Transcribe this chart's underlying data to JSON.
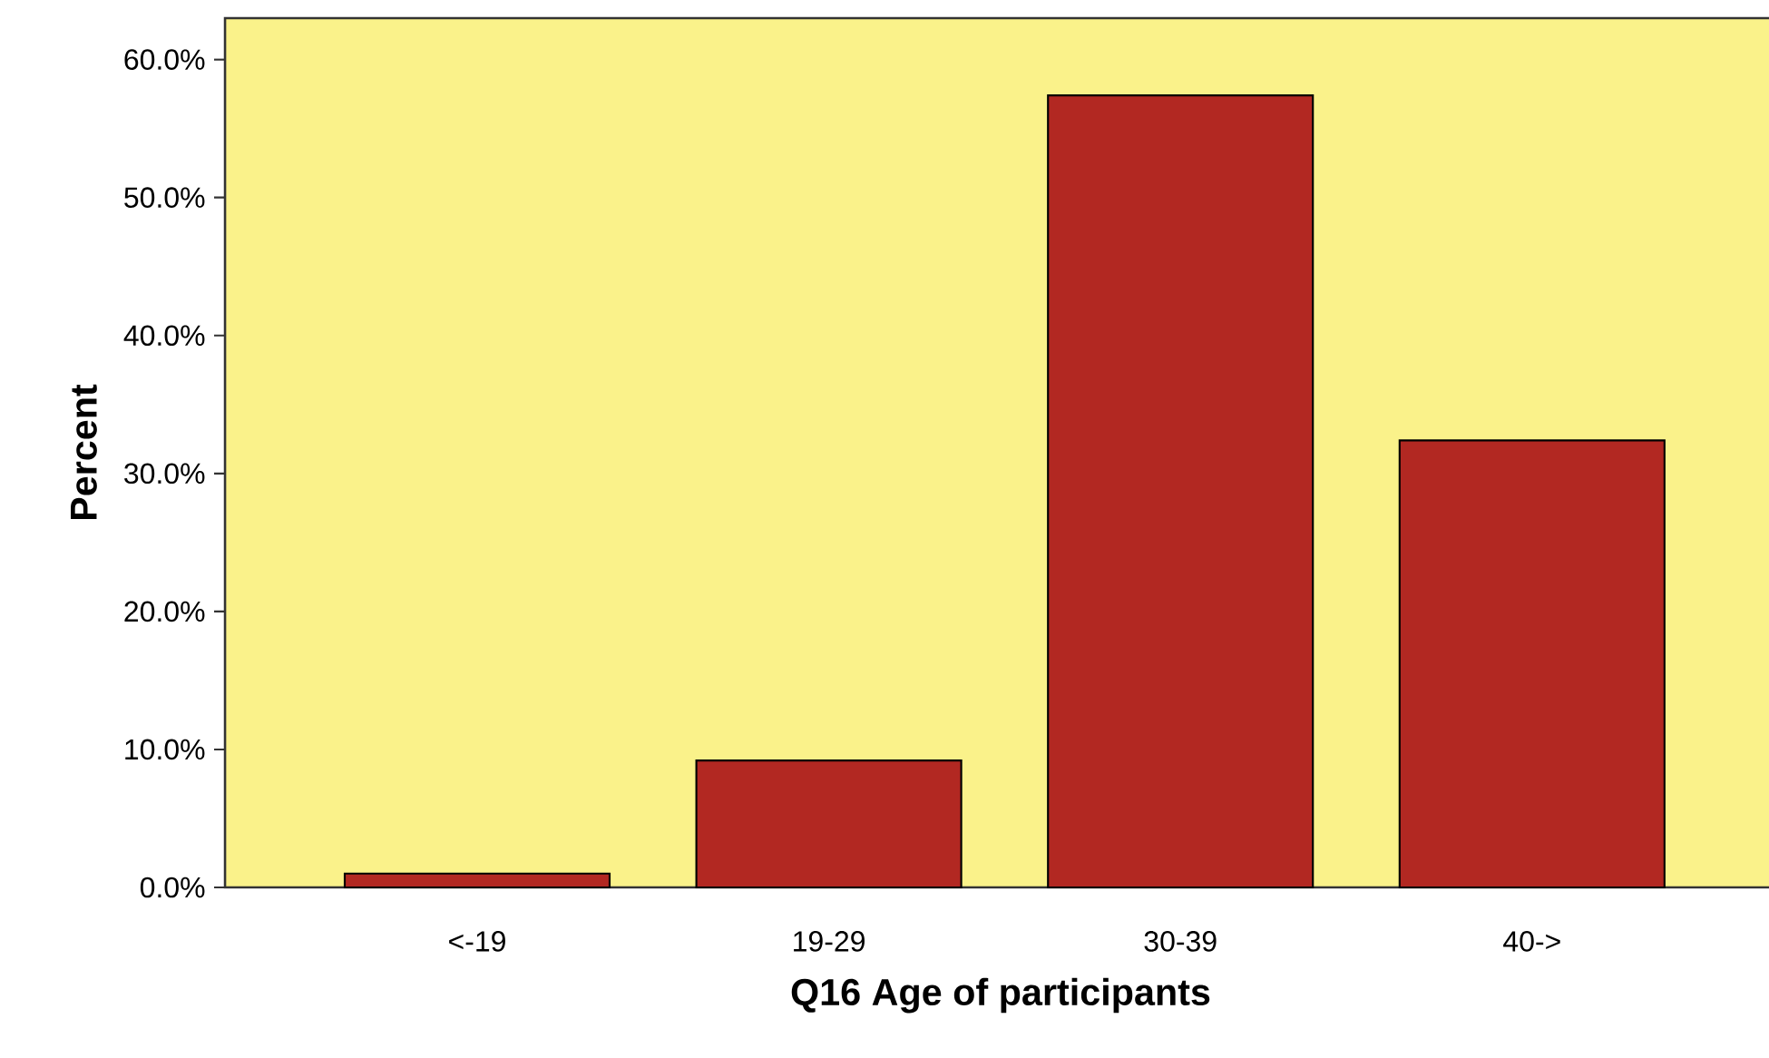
{
  "chart_data": {
    "type": "bar",
    "xlabel": "Q16 Age of participants",
    "ylabel": "Percent",
    "categories": [
      "<-19",
      "19-29",
      "30-39",
      "40->"
    ],
    "values": [
      1.0,
      9.2,
      57.4,
      32.4
    ],
    "color": "#b22822",
    "ylim": [
      0,
      63
    ],
    "yticks": [
      {
        "value": 0,
        "label": "0.0%"
      },
      {
        "value": 10,
        "label": "10.0%"
      },
      {
        "value": 20,
        "label": "20.0%"
      },
      {
        "value": 30,
        "label": "30.0%"
      },
      {
        "value": 40,
        "label": "40.0%"
      },
      {
        "value": 50,
        "label": "50.0%"
      },
      {
        "value": 60,
        "label": "60.0%"
      }
    ],
    "grid": false
  }
}
